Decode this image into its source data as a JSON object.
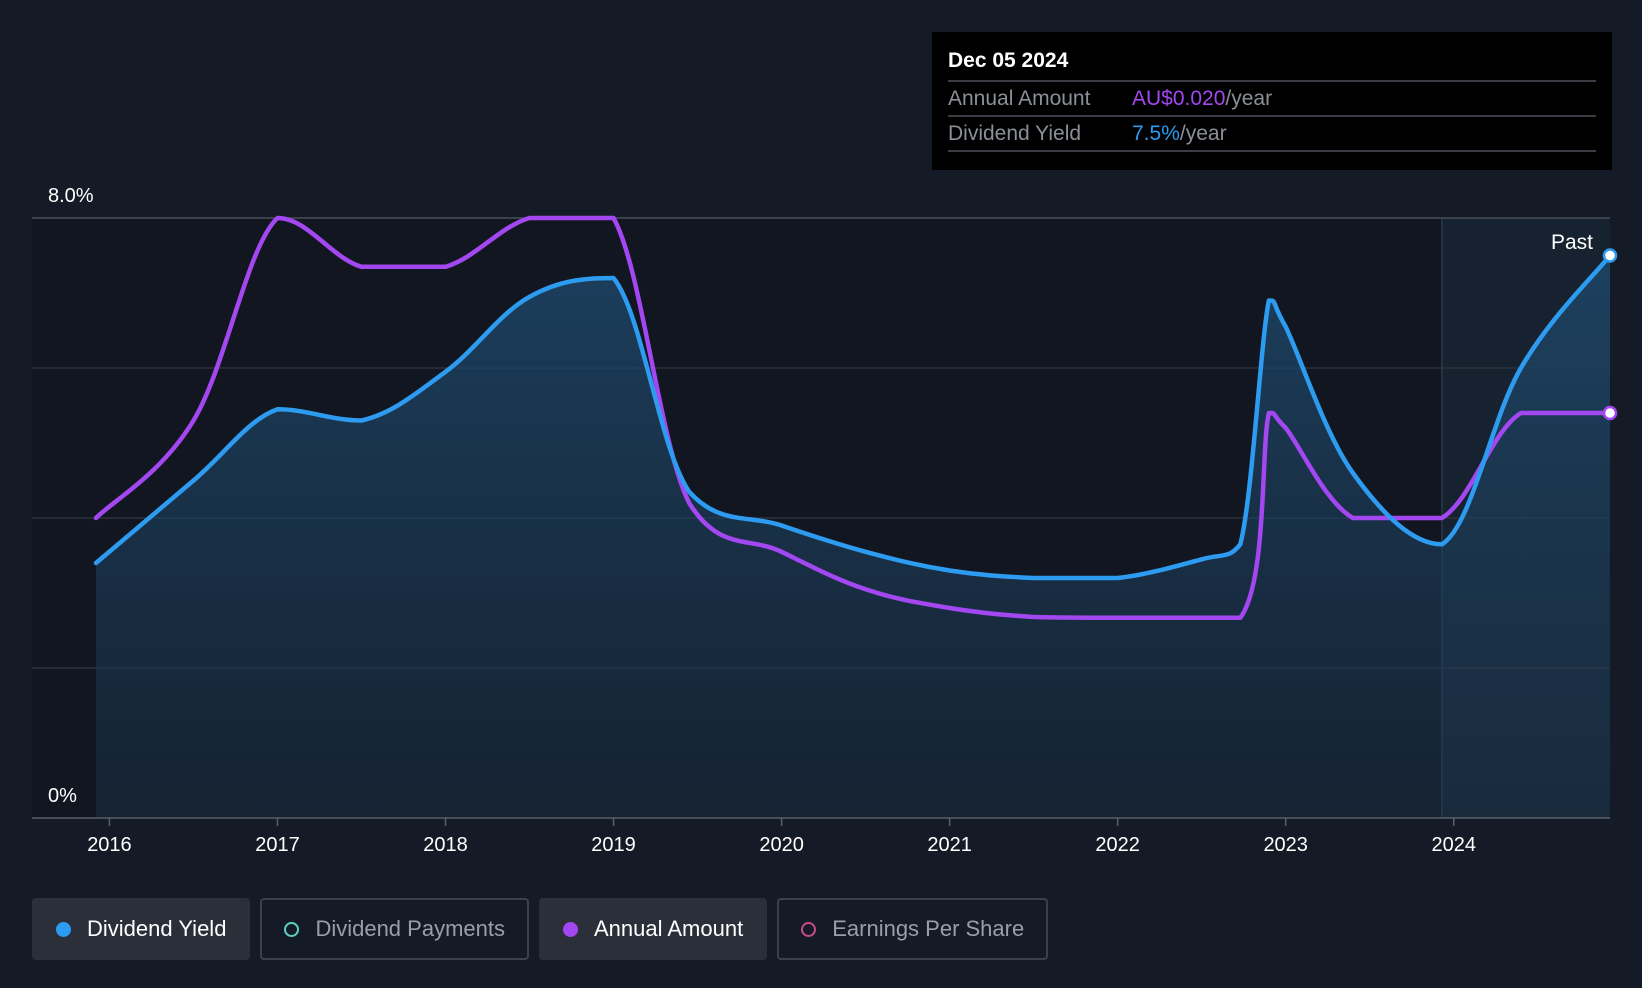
{
  "tooltip": {
    "date": "Dec 05 2024",
    "rows": [
      {
        "label": "Annual Amount",
        "value": "AU$0.020",
        "unit": "/year",
        "color": "#a347f0"
      },
      {
        "label": "Dividend Yield",
        "value": "7.5%",
        "unit": "/year",
        "color": "#2d9bf0"
      }
    ]
  },
  "legend": [
    {
      "label": "Dividend Yield",
      "color": "#2d9bf0",
      "filled": true,
      "active": true
    },
    {
      "label": "Dividend Payments",
      "color": "#5fd0c4",
      "filled": false,
      "active": false
    },
    {
      "label": "Annual Amount",
      "color": "#a347f0",
      "filled": true,
      "active": true
    },
    {
      "label": "Earnings Per Share",
      "color": "#c94a8a",
      "filled": false,
      "active": false
    }
  ],
  "chart_data": {
    "type": "line",
    "title": "",
    "ylim": [
      0,
      8
    ],
    "y_tick_labels": [
      "8.0%",
      "0%"
    ],
    "x_range": [
      2015.92,
      2024.93
    ],
    "x_ticks": [
      2016,
      2017,
      2018,
      2019,
      2020,
      2021,
      2022,
      2023,
      2024
    ],
    "x_tick_labels": [
      "2016",
      "2017",
      "2018",
      "2019",
      "2020",
      "2021",
      "2022",
      "2023",
      "2024"
    ],
    "annotation": "Past",
    "forecast_start": 2023.93,
    "series": [
      {
        "name": "Dividend Yield",
        "color": "#2d9bf0",
        "area": true,
        "x": [
          2015.92,
          2016.5,
          2017.0,
          2017.5,
          2018.0,
          2018.5,
          2019.0,
          2019.45,
          2020.0,
          2020.5,
          2021.0,
          2021.5,
          2022.0,
          2022.5,
          2022.73,
          2022.9,
          2023.0,
          2023.4,
          2023.93,
          2024.4,
          2024.93
        ],
        "y": [
          3.4,
          4.5,
          5.45,
          5.3,
          5.95,
          6.95,
          7.2,
          4.35,
          3.9,
          3.55,
          3.3,
          3.2,
          3.2,
          3.45,
          3.65,
          6.9,
          6.55,
          4.6,
          3.65,
          6.0,
          7.5
        ]
      },
      {
        "name": "Annual Amount",
        "color": "#a347f0",
        "area": false,
        "x": [
          2015.92,
          2016.5,
          2017.0,
          2017.5,
          2018.0,
          2018.5,
          2019.0,
          2019.45,
          2020.0,
          2020.5,
          2021.0,
          2021.5,
          2022.0,
          2022.73,
          2022.9,
          2023.0,
          2023.4,
          2023.93,
          2024.4,
          2024.93
        ],
        "y": [
          4.0,
          5.3,
          8.0,
          7.35,
          7.35,
          8.0,
          8.0,
          4.2,
          3.55,
          3.05,
          2.8,
          2.68,
          2.67,
          2.67,
          5.4,
          5.2,
          4.0,
          4.0,
          5.4,
          5.4
        ]
      }
    ]
  }
}
